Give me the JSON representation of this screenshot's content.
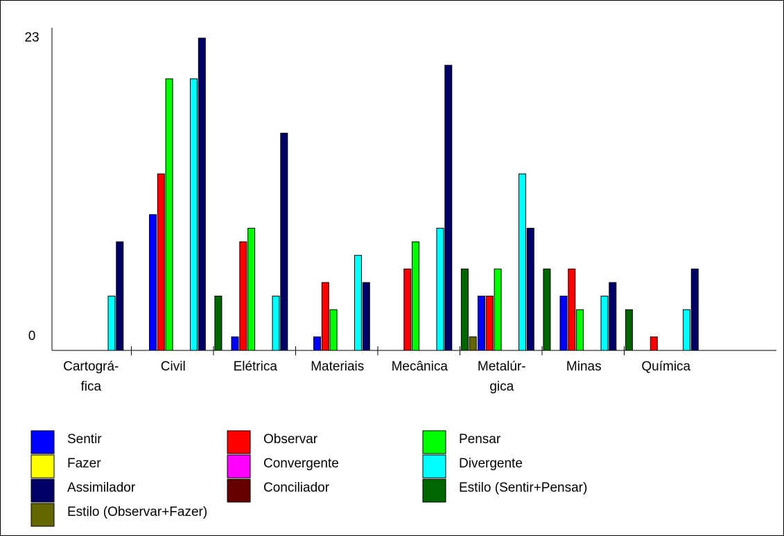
{
  "chart_data": {
    "type": "bar",
    "ylim": [
      0,
      23
    ],
    "yticks": [
      "0",
      "23"
    ],
    "categories": [
      [
        "Cartográ-",
        "fica"
      ],
      [
        "Civil"
      ],
      [
        "Elétrica"
      ],
      [
        "Materiais"
      ],
      [
        "Mecânica"
      ],
      [
        "Metalúr-",
        "gica"
      ],
      [
        "Minas"
      ],
      [
        "Química"
      ]
    ],
    "series": [
      {
        "name": "Sentir",
        "color": "#0000ff",
        "values": [
          0,
          10,
          1,
          1,
          0,
          4,
          4,
          0
        ]
      },
      {
        "name": "Observar",
        "color": "#ff0000",
        "values": [
          0,
          13,
          8,
          5,
          6,
          4,
          6,
          1
        ]
      },
      {
        "name": "Pensar",
        "color": "#00ff00",
        "values": [
          0,
          20,
          9,
          3,
          8,
          6,
          3,
          0
        ]
      },
      {
        "name": "Fazer",
        "color": "#ffff00",
        "values": [
          0,
          0,
          0,
          0,
          0,
          0,
          0,
          0
        ]
      },
      {
        "name": "Convergente",
        "color": "#ff00ff",
        "values": [
          0,
          0,
          0,
          0,
          0,
          0,
          0,
          0
        ]
      },
      {
        "name": "Divergente",
        "color": "#00ffff",
        "values": [
          4,
          20,
          4,
          7,
          9,
          13,
          4,
          3
        ]
      },
      {
        "name": "Assimilador",
        "color": "#000066",
        "values": [
          8,
          23,
          16,
          5,
          21,
          9,
          5,
          6
        ]
      },
      {
        "name": "Conciliador",
        "color": "#660000",
        "values": [
          0,
          0,
          0,
          0,
          0,
          0,
          0,
          0
        ]
      },
      {
        "name": "Estilo (Sentir+Pensar)",
        "color": "#006600",
        "values": [
          0,
          4,
          0,
          0,
          6,
          6,
          3,
          0
        ]
      },
      {
        "name": "Estilo (Observar+Fazer)",
        "color": "#666600",
        "values": [
          0,
          0,
          0,
          0,
          1,
          0,
          0,
          0
        ]
      }
    ],
    "legend_position": "bottom"
  }
}
